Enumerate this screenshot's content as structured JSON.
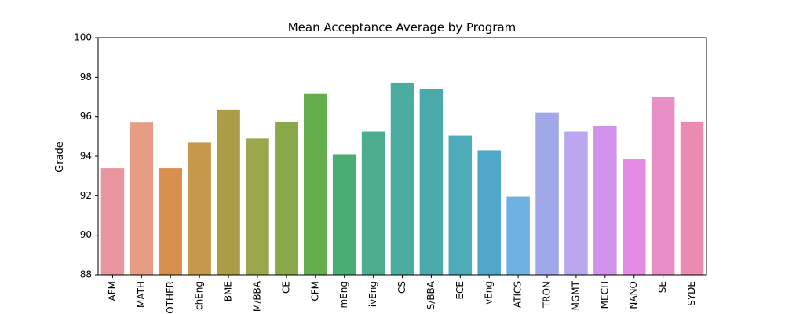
{
  "chart_data": {
    "type": "bar",
    "title": "Mean Acceptance Average by Program",
    "xlabel": "",
    "ylabel": "Grade",
    "ylim": [
      88,
      100
    ],
    "yticks": [
      88,
      90,
      92,
      94,
      96,
      98,
      100
    ],
    "grid": false,
    "categories": [
      "AFM",
      "MATH",
      "OTHER",
      "chEng",
      "BME",
      "M/BBA",
      "CE",
      "CFM",
      "mEng",
      "ivEng",
      "CS",
      "S/BBA",
      "ECE",
      "vEng",
      "ATICS",
      "TRON",
      "MGMT",
      "MECH",
      "NANO",
      "SE",
      "SYDE"
    ],
    "values": [
      93.4,
      95.7,
      93.4,
      94.7,
      96.35,
      94.9,
      95.75,
      97.15,
      94.1,
      95.25,
      97.7,
      97.4,
      95.05,
      94.3,
      91.95,
      96.2,
      95.25,
      95.55,
      93.85,
      97.0,
      95.75
    ],
    "colors": [
      "#e8969d",
      "#e69b85",
      "#d9904f",
      "#c49a4a",
      "#ab9c48",
      "#9ba64d",
      "#8ba94a",
      "#63ad4c",
      "#4aad72",
      "#4aad90",
      "#4aad9f",
      "#49aaa9",
      "#4daab8",
      "#4ea6c9",
      "#6fb0e3",
      "#a1a8ea",
      "#b9a6ec",
      "#d293ec",
      "#e48ae2",
      "#e88ec7",
      "#eb8bb0"
    ]
  }
}
